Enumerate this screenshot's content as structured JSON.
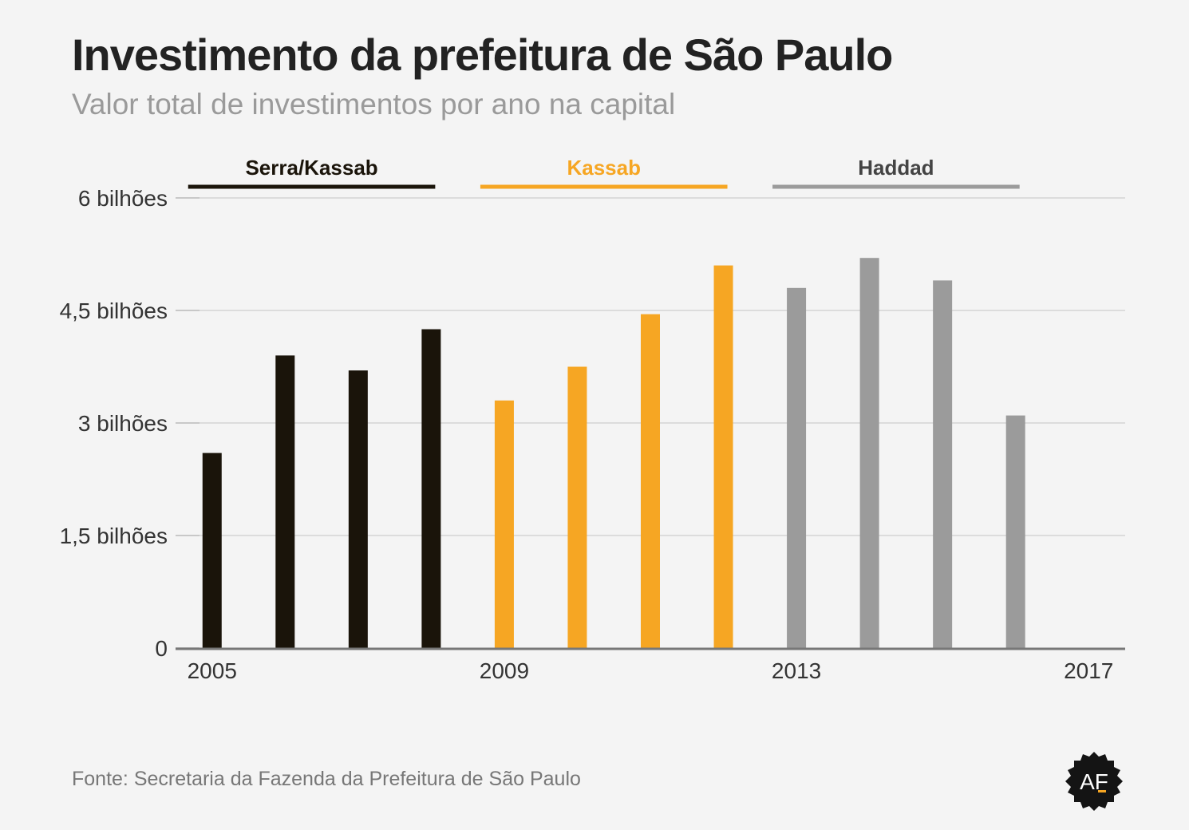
{
  "title": "Investimento da prefeitura de São Paulo",
  "subtitle": "Valor total de investimentos por ano na capital",
  "source": "Fonte: Secretaria da Fazenda da Prefeitura de São Paulo",
  "logo": {
    "text": "AF",
    "icon": "af-logo-badge"
  },
  "colors": {
    "serra_kassab": "#1a140a",
    "kassab": "#f6a623",
    "haddad": "#9b9b9b",
    "grid": "#dcdcdc",
    "axis": "#777777",
    "background": "#f4f4f4"
  },
  "chart_data": {
    "type": "bar",
    "x": [
      2005,
      2006,
      2007,
      2008,
      2009,
      2010,
      2011,
      2012,
      2013,
      2014,
      2015,
      2016
    ],
    "values": [
      2.6,
      3.9,
      3.7,
      4.25,
      3.3,
      3.75,
      4.45,
      5.1,
      4.8,
      5.2,
      4.9,
      3.1
    ],
    "period_groups": [
      {
        "label": "Serra/Kassab",
        "color": "#1a140a",
        "years": [
          2005,
          2006,
          2007,
          2008
        ]
      },
      {
        "label": "Kassab",
        "color": "#f6a623",
        "years": [
          2009,
          2010,
          2011,
          2012
        ]
      },
      {
        "label": "Haddad",
        "color": "#9b9b9b",
        "years": [
          2013,
          2014,
          2015,
          2016
        ]
      }
    ],
    "yticks": [
      {
        "value": 0,
        "label": "0"
      },
      {
        "value": 1.5,
        "label": "1,5 bilhões"
      },
      {
        "value": 3,
        "label": "3 bilhões"
      },
      {
        "value": 4.5,
        "label": "4,5 bilhões"
      },
      {
        "value": 6,
        "label": "6 bilhões"
      }
    ],
    "xticks": [
      {
        "value": 2005,
        "label": "2005"
      },
      {
        "value": 2009,
        "label": "2009"
      },
      {
        "value": 2013,
        "label": "2013"
      },
      {
        "value": 2017,
        "label": "2017"
      }
    ],
    "ylim": [
      0,
      6
    ],
    "xlim": [
      2004.5,
      2017.5
    ],
    "grid": true,
    "title": "Investimento da prefeitura de São Paulo",
    "subtitle": "Valor total de investimentos por ano na capital"
  }
}
